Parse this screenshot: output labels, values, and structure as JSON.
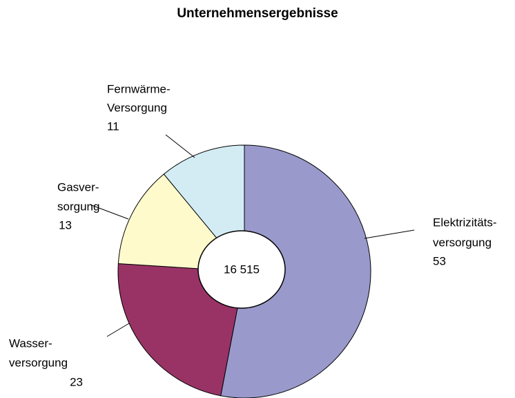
{
  "chart_data": {
    "type": "donut",
    "title": "Unternehmensergebnisse",
    "categories": [
      [
        "Elektrizitäts-",
        "versorgung"
      ],
      [
        "Wasser-",
        "versorgung"
      ],
      [
        "Gasver-",
        "sorgung"
      ],
      [
        "Fernwärme-",
        "Versorgung"
      ]
    ],
    "values": [
      53,
      23,
      13,
      11
    ],
    "colors": [
      "#9999cc",
      "#993366",
      "#fffacc",
      "#d3ecf4"
    ],
    "center_label": "16 515"
  }
}
